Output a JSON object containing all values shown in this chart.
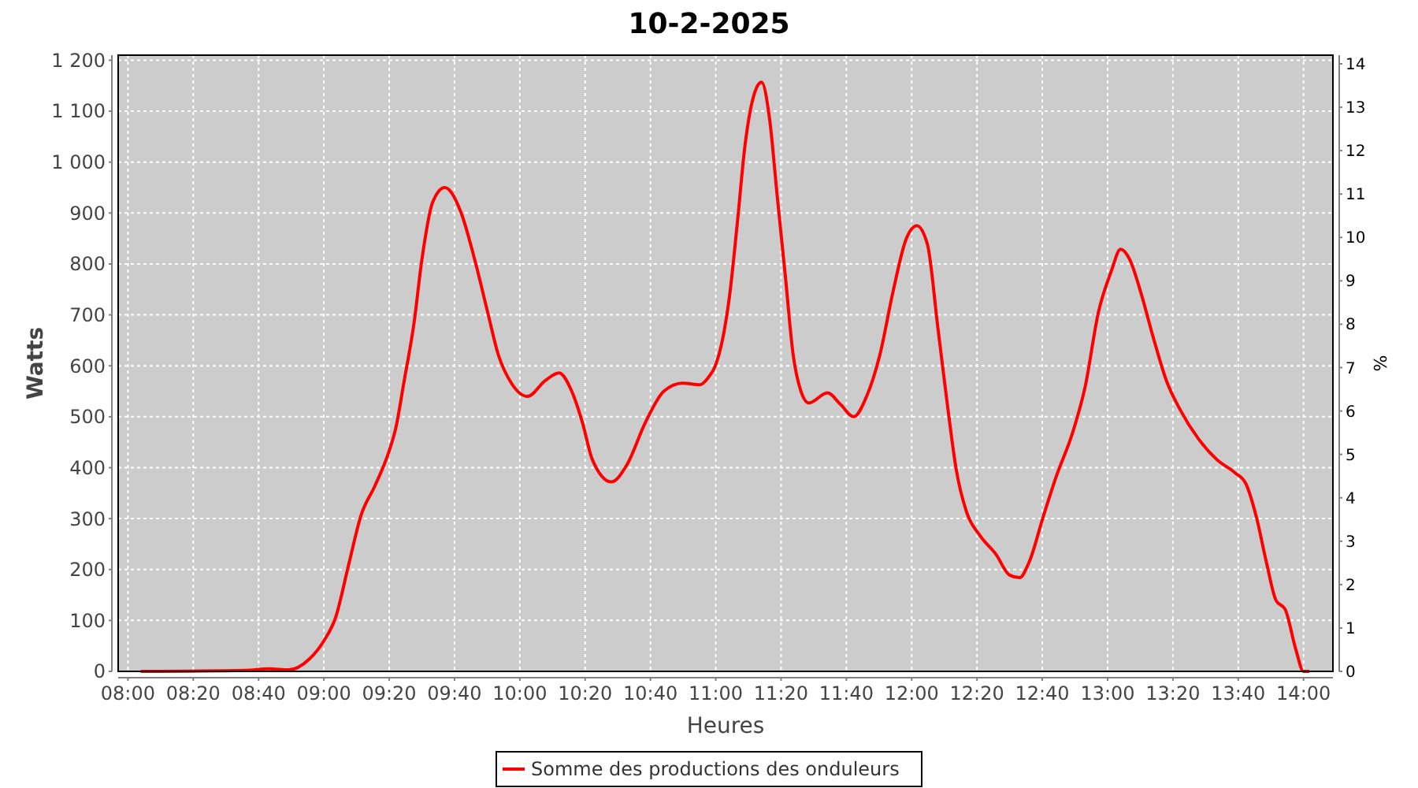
{
  "chart_data": {
    "type": "line",
    "title": "10-2-2025",
    "xlabel": "Heures",
    "ylabel": "Watts",
    "y2label": "%",
    "x": [
      8.065,
      8.6,
      8.72,
      8.82,
      8.925,
      9.0,
      9.06,
      9.126,
      9.19,
      9.26,
      9.327,
      9.367,
      9.41,
      9.46,
      9.5,
      9.555,
      9.617,
      9.7,
      9.77,
      9.836,
      9.89,
      9.957,
      10.04,
      10.13,
      10.2,
      10.265,
      10.32,
      10.37,
      10.467,
      10.547,
      10.64,
      10.735,
      10.83,
      10.92,
      10.96,
      11.0,
      11.03,
      11.07,
      11.11,
      11.15,
      11.2,
      11.234,
      11.274,
      11.314,
      11.355,
      11.395,
      11.435,
      11.475,
      11.57,
      11.637,
      11.704,
      11.77,
      11.838,
      11.905,
      11.972,
      12.026,
      12.08,
      12.134,
      12.187,
      12.228,
      12.28,
      12.35,
      12.43,
      12.5,
      12.55,
      12.6,
      12.67,
      12.74,
      12.82,
      12.886,
      12.953,
      13.02,
      13.066,
      13.114,
      13.168,
      13.235,
      13.3,
      13.37,
      13.463,
      13.557,
      13.65,
      13.705,
      13.76,
      13.81,
      13.86,
      13.906,
      13.96,
      14.0,
      14.03
    ],
    "series": [
      {
        "name": "Somme des productions des onduleurs",
        "color": "#ff0000",
        "values": [
          0,
          2,
          5,
          3,
          24,
          60,
          106,
          209,
          307,
          364,
          426,
          478,
          571,
          684,
          808,
          921,
          950,
          901,
          808,
          705,
          622,
          566,
          540,
          571,
          586,
          550,
          488,
          416,
          372,
          406,
          488,
          550,
          566,
          563,
          576,
          602,
          643,
          736,
          880,
          1035,
          1138,
          1157,
          1087,
          932,
          777,
          622,
          550,
          527,
          547,
          524,
          500,
          540,
          622,
          746,
          849,
          875,
          839,
          674,
          509,
          395,
          313,
          266,
          230,
          189,
          184,
          215,
          302,
          385,
          467,
          560,
          705,
          787,
          829,
          808,
          746,
          653,
          571,
          514,
          457,
          416,
          390,
          369,
          302,
          215,
          139,
          122,
          44,
          0,
          0
        ]
      }
    ],
    "xlim": [
      7.95,
      14.15
    ],
    "xticks": [
      {
        "value": 8,
        "label": "08:00"
      },
      {
        "value": 8.3333,
        "label": "08:20"
      },
      {
        "value": 8.6667,
        "label": "08:40"
      },
      {
        "value": 9,
        "label": "09:00"
      },
      {
        "value": 9.3333,
        "label": "09:20"
      },
      {
        "value": 9.6667,
        "label": "09:40"
      },
      {
        "value": 10,
        "label": "10:00"
      },
      {
        "value": 10.3333,
        "label": "10:20"
      },
      {
        "value": 10.6667,
        "label": "10:40"
      },
      {
        "value": 11,
        "label": "11:00"
      },
      {
        "value": 11.3333,
        "label": "11:20"
      },
      {
        "value": 11.6667,
        "label": "11:40"
      },
      {
        "value": 12,
        "label": "12:00"
      },
      {
        "value": 12.3333,
        "label": "12:20"
      },
      {
        "value": 12.6667,
        "label": "12:40"
      },
      {
        "value": 13,
        "label": "13:00"
      },
      {
        "value": 13.3333,
        "label": "13:20"
      },
      {
        "value": 13.6667,
        "label": "13:40"
      },
      {
        "value": 14,
        "label": "14:00"
      }
    ],
    "ylim": [
      0,
      1210
    ],
    "yticks": [
      0,
      100,
      200,
      300,
      400,
      500,
      600,
      700,
      800,
      900,
      {
        "value": 1000,
        "label": "1 000"
      },
      {
        "value": 1100,
        "label": "1 100"
      },
      {
        "value": 1200,
        "label": "1 200"
      }
    ],
    "y2lim": [
      0,
      14.2
    ],
    "y2ticks": [
      0,
      1,
      2,
      3,
      4,
      5,
      6,
      7,
      8,
      9,
      10,
      11,
      12,
      13,
      14
    ],
    "grid": true,
    "legend": "bottom",
    "marker": "none",
    "line_style": "solid"
  }
}
